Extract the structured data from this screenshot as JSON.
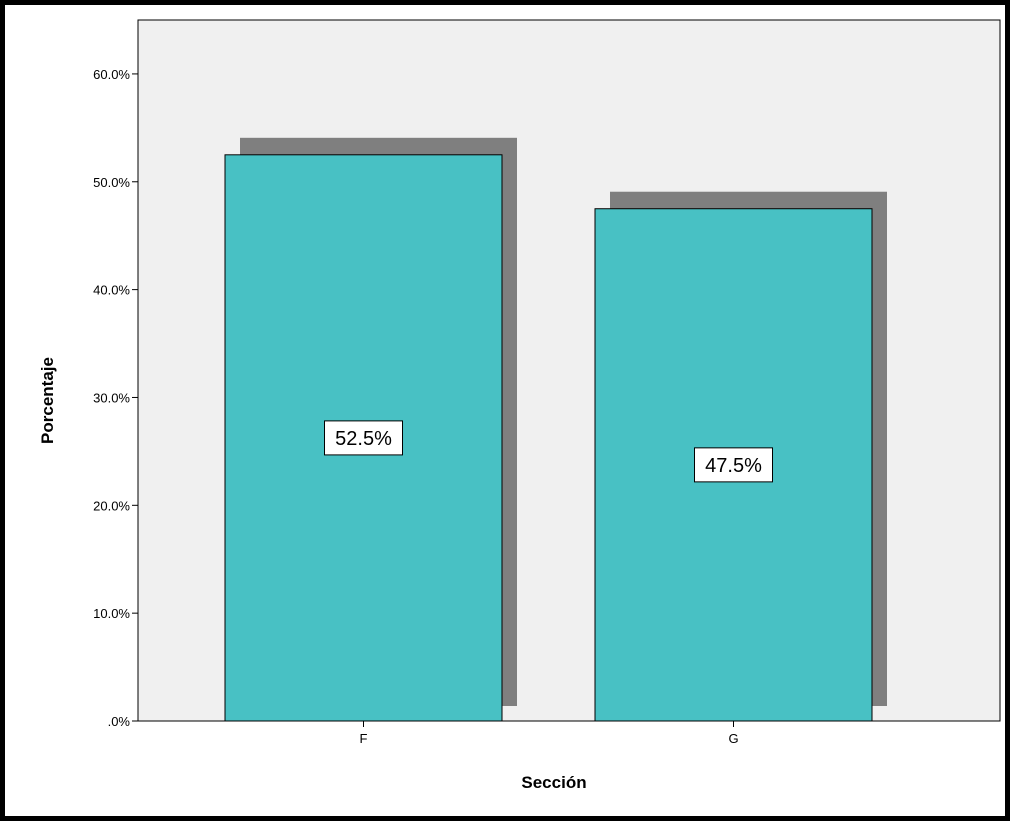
{
  "chart_data": {
    "type": "bar",
    "categories": [
      "F",
      "G"
    ],
    "values": [
      52.5,
      47.5
    ],
    "data_labels": [
      "52.5%",
      "47.5%"
    ],
    "xlabel": "Sección",
    "ylabel": "Porcentaje",
    "ylim": [
      0,
      65
    ],
    "yticks": [
      0,
      10,
      20,
      30,
      40,
      50,
      60
    ],
    "ytick_labels": [
      ".0%",
      "10.0%",
      "20.0%",
      "30.0%",
      "40.0%",
      "50.0%",
      "60.0%"
    ],
    "grid": false,
    "legend": "none",
    "colors": {
      "bar": "#48c1c4",
      "shadow": "#7f7f7f",
      "plot_background": "#f0f0f0",
      "frame": "#000000"
    }
  }
}
